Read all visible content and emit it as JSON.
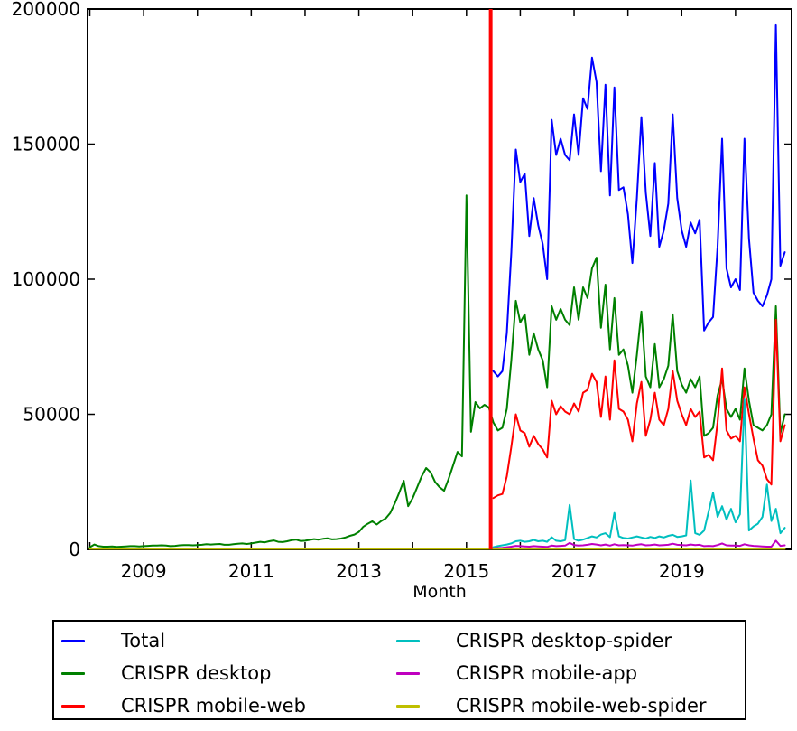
{
  "figure": {
    "background": "#ffffff",
    "axis_color": "#000000",
    "xlabel": "Month"
  },
  "legend": {
    "items": [
      {
        "label": "Total",
        "color": "#0000FF"
      },
      {
        "label": "CRISPR desktop",
        "color": "#008000"
      },
      {
        "label": "CRISPR mobile-web",
        "color": "#FF0000"
      },
      {
        "label": "CRISPR desktop-spider",
        "color": "#00BFBF"
      },
      {
        "label": "CRISPR mobile-app",
        "color": "#BF00BF"
      },
      {
        "label": "CRISPR mobile-web-spider",
        "color": "#BFBF00"
      }
    ]
  },
  "chart_data": {
    "type": "line",
    "title": "",
    "xlabel": "Month",
    "ylabel": "",
    "x_unit": "month",
    "x_index_zero": "2008-01",
    "xlim": [
      2007.958,
      2021.042
    ],
    "ylim": [
      0,
      200000
    ],
    "grid": false,
    "legend_position": "below",
    "x_ticks": [
      2008,
      2009,
      2010,
      2011,
      2012,
      2013,
      2014,
      2015,
      2016,
      2017,
      2018,
      2019,
      2020
    ],
    "x_tick_labels": [
      {
        "year": 2009,
        "label": "2009"
      },
      {
        "year": 2011,
        "label": "2011"
      },
      {
        "year": 2013,
        "label": "2013"
      },
      {
        "year": 2015,
        "label": "2015"
      },
      {
        "year": 2017,
        "label": "2017"
      },
      {
        "year": 2019,
        "label": "2019"
      }
    ],
    "y_ticks": [
      {
        "value": 0,
        "label": "0"
      },
      {
        "value": 50000,
        "label": "50000"
      },
      {
        "value": 100000,
        "label": "100000"
      },
      {
        "value": 150000,
        "label": "150000"
      },
      {
        "value": 200000,
        "label": "200000"
      }
    ],
    "annotations": {
      "vline": {
        "year": 2015.45,
        "color": "#FF0000",
        "width": 4
      }
    },
    "series": [
      {
        "name": "Total",
        "color": "#0000FF",
        "start_month": "2015-07",
        "start_index": 90,
        "values": [
          66000,
          64000,
          66000,
          80000,
          110000,
          148000,
          136000,
          139000,
          116000,
          130000,
          120000,
          113000,
          100000,
          159000,
          146000,
          152000,
          146000,
          144000,
          161000,
          146000,
          167000,
          163000,
          182000,
          173000,
          140000,
          172000,
          131000,
          171000,
          133000,
          134000,
          124000,
          106000,
          130000,
          160000,
          132000,
          116000,
          143000,
          112000,
          118000,
          128000,
          161000,
          130000,
          118000,
          112000,
          121000,
          117000,
          122000,
          81000,
          84000,
          86000,
          112000,
          152000,
          104000,
          97000,
          100000,
          96000,
          152000,
          115000,
          95000,
          92000,
          90000,
          94000,
          100000,
          194000,
          105000,
          110000
        ]
      },
      {
        "name": "CRISPR desktop",
        "color": "#008000",
        "start_month": "2008-01",
        "start_index": 0,
        "values": [
          800,
          1800,
          1200,
          1000,
          1000,
          1100,
          900,
          1000,
          1100,
          1200,
          1200,
          1100,
          1200,
          1300,
          1400,
          1400,
          1500,
          1400,
          1200,
          1300,
          1500,
          1600,
          1600,
          1500,
          1600,
          1700,
          1900,
          1800,
          1900,
          2000,
          1700,
          1700,
          1900,
          2100,
          2200,
          2000,
          2200,
          2500,
          2800,
          2600,
          3000,
          3300,
          2800,
          2700,
          3000,
          3400,
          3600,
          3100,
          3200,
          3500,
          3800,
          3600,
          3900,
          4100,
          3700,
          3800,
          4000,
          4400,
          5000,
          5500,
          6500,
          8400,
          9500,
          10400,
          9200,
          10500,
          11500,
          13500,
          17000,
          21000,
          25400,
          16000,
          19000,
          23000,
          27000,
          30100,
          28500,
          25000,
          23000,
          21700,
          26000,
          31000,
          36100,
          34400,
          131000,
          43500,
          54500,
          52200,
          53500,
          52500,
          47000,
          44000,
          45000,
          52000,
          70000,
          92000,
          84000,
          87000,
          72000,
          80000,
          74000,
          70000,
          60000,
          90000,
          85000,
          89000,
          85000,
          83000,
          97000,
          85000,
          97000,
          93000,
          104000,
          108000,
          82000,
          98000,
          74000,
          93000,
          72000,
          74000,
          68000,
          58000,
          72000,
          88000,
          64000,
          60000,
          76000,
          60000,
          63000,
          68000,
          87000,
          66000,
          61000,
          58000,
          63000,
          60000,
          64000,
          42000,
          43000,
          45000,
          57000,
          63000,
          52000,
          49000,
          52000,
          48000,
          67000,
          55000,
          46000,
          45000,
          44000,
          46000,
          50000,
          90000,
          43000,
          50000
        ]
      },
      {
        "name": "CRISPR mobile-web",
        "color": "#FF0000",
        "start_month": "2015-07",
        "start_index": 90,
        "values": [
          19000,
          20000,
          20500,
          27000,
          38000,
          50000,
          44000,
          43000,
          38000,
          42000,
          39000,
          37000,
          34000,
          55000,
          50000,
          53000,
          51000,
          50000,
          54000,
          51000,
          58000,
          59000,
          65000,
          62000,
          49000,
          64000,
          48000,
          70000,
          52000,
          51000,
          48000,
          40000,
          54000,
          62000,
          42000,
          48000,
          58000,
          48000,
          46000,
          52000,
          66000,
          55000,
          50000,
          46000,
          52000,
          49000,
          51000,
          34000,
          35000,
          33000,
          47000,
          67000,
          44000,
          41000,
          42000,
          40000,
          60000,
          50000,
          41000,
          33000,
          31000,
          26000,
          24000,
          85000,
          40000,
          46000
        ]
      },
      {
        "name": "CRISPR desktop-spider",
        "color": "#00BFBF",
        "start_month": "2015-07",
        "start_index": 90,
        "values": [
          800,
          1200,
          1500,
          1800,
          2200,
          3000,
          3200,
          2800,
          3000,
          3500,
          3000,
          3200,
          2800,
          4500,
          3200,
          3000,
          3400,
          16500,
          3800,
          3200,
          3600,
          4200,
          4800,
          4400,
          5500,
          6000,
          4500,
          13500,
          4800,
          4200,
          4000,
          4400,
          4800,
          4400,
          4000,
          4600,
          4200,
          4800,
          4400,
          5000,
          5400,
          4600,
          4800,
          5200,
          25500,
          6000,
          5400,
          7000,
          14000,
          21000,
          12000,
          16000,
          11000,
          15000,
          10000,
          13000,
          55500,
          7000,
          8500,
          9500,
          12000,
          24000,
          10500,
          15000,
          6000,
          8000
        ]
      },
      {
        "name": "CRISPR mobile-app",
        "color": "#BF00BF",
        "start_month": "2015-07",
        "start_index": 90,
        "values": [
          400,
          500,
          600,
          800,
          1000,
          1300,
          1200,
          1100,
          1000,
          1200,
          1100,
          1000,
          900,
          1400,
          1200,
          1300,
          1400,
          2400,
          1600,
          1400,
          1500,
          1700,
          2000,
          1800,
          1500,
          1800,
          1400,
          1900,
          1500,
          1600,
          1500,
          1400,
          1700,
          1900,
          1500,
          1600,
          1800,
          1500,
          1600,
          1700,
          2100,
          1700,
          1600,
          1500,
          1800,
          1600,
          1700,
          1200,
          1300,
          1200,
          1600,
          2200,
          1500,
          1400,
          1400,
          1300,
          1900,
          1500,
          1300,
          1200,
          1100,
          1000,
          1000,
          3200,
          1300,
          1500
        ]
      },
      {
        "name": "CRISPR mobile-web-spider",
        "color": "#BFBF00",
        "start_month": "2008-01",
        "start_index": 0,
        "constant": 200,
        "count": 156
      }
    ]
  }
}
